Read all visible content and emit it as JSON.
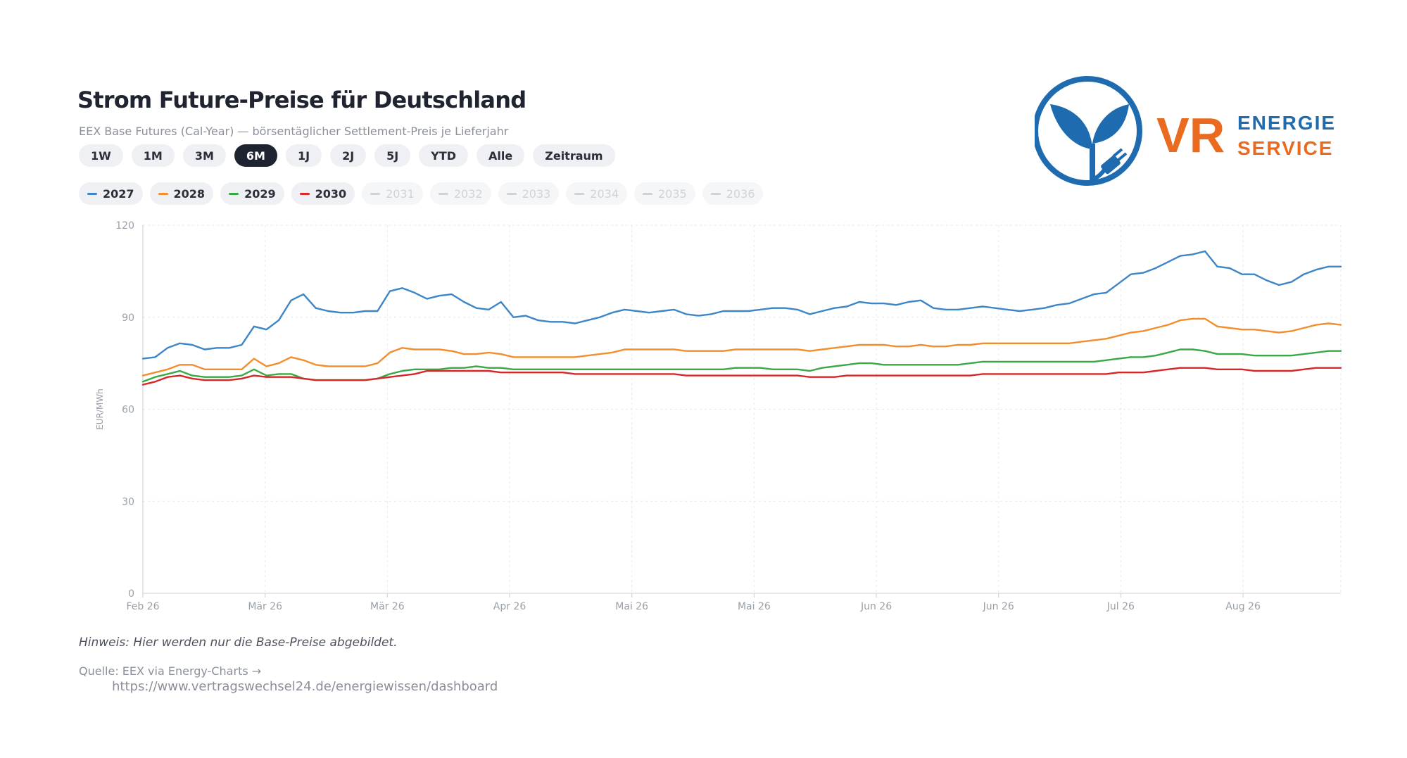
{
  "header": {
    "title": "Strom Future-Preise für Deutschland",
    "subtitle": "EEX Base Futures (Cal-Year) — börsentäglicher Settlement-Preis je Lieferjahr"
  },
  "ranges": [
    {
      "label": "1W",
      "active": false
    },
    {
      "label": "1M",
      "active": false
    },
    {
      "label": "3M",
      "active": false
    },
    {
      "label": "6M",
      "active": true
    },
    {
      "label": "1J",
      "active": false
    },
    {
      "label": "2J",
      "active": false
    },
    {
      "label": "5J",
      "active": false
    },
    {
      "label": "YTD",
      "active": false
    },
    {
      "label": "Alle",
      "active": false
    },
    {
      "label": "Zeitraum",
      "active": false
    }
  ],
  "series_toggles": [
    {
      "label": "2027",
      "color": "#3d85c6",
      "active": true
    },
    {
      "label": "2028",
      "color": "#f28e2b",
      "active": true
    },
    {
      "label": "2029",
      "color": "#3aa845",
      "active": true
    },
    {
      "label": "2030",
      "color": "#d62728",
      "active": true
    },
    {
      "label": "2031",
      "color": "#cfd3d8",
      "active": false
    },
    {
      "label": "2032",
      "color": "#cfd3d8",
      "active": false
    },
    {
      "label": "2033",
      "color": "#cfd3d8",
      "active": false
    },
    {
      "label": "2034",
      "color": "#cfd3d8",
      "active": false
    },
    {
      "label": "2035",
      "color": "#cfd3d8",
      "active": false
    },
    {
      "label": "2036",
      "color": "#cfd3d8",
      "active": false
    }
  ],
  "chart_data": {
    "type": "line",
    "ylabel": "EUR/MWh",
    "ylim": [
      0,
      120
    ],
    "yticks": [
      "0",
      "30",
      "60",
      "90",
      "120"
    ],
    "xticks": [
      "Feb 26",
      "Mär 26",
      "Mär 26",
      "Apr 26",
      "Mai 26",
      "Mai 26",
      "Jun 26",
      "Jun 26",
      "Jul 26",
      "Aug 26"
    ],
    "grid": true,
    "x": [
      0,
      2,
      4,
      6,
      8,
      10,
      12,
      14,
      16,
      18,
      20,
      22,
      24,
      26,
      28,
      30,
      32,
      34,
      36,
      38,
      40,
      42,
      44,
      46,
      48,
      50,
      52,
      54,
      56,
      58,
      60,
      62,
      64,
      66,
      68,
      70,
      72,
      74,
      76,
      78,
      80,
      82,
      84,
      86,
      88,
      90,
      92,
      94,
      96,
      98,
      100,
      102,
      104,
      106,
      108,
      110,
      112,
      114,
      116,
      118,
      120,
      122,
      124,
      126,
      128,
      130,
      132,
      134,
      136,
      138,
      140,
      142,
      144,
      146,
      148,
      150,
      152,
      154,
      156,
      158,
      160,
      162,
      164,
      166,
      168,
      170,
      172,
      174,
      176,
      178,
      180,
      182,
      184,
      186,
      188,
      190,
      192,
      194
    ],
    "series": [
      {
        "name": "2027",
        "color": "#3d85c6",
        "values": [
          76.5,
          77,
          80,
          81.5,
          81,
          79.5,
          80,
          80,
          81,
          87,
          86,
          89,
          95.5,
          97.5,
          93,
          92,
          91.5,
          91.5,
          92,
          92,
          98.5,
          99.5,
          98,
          96,
          97,
          97.5,
          95,
          93,
          92.5,
          95,
          90,
          90.5,
          89,
          88.5,
          88.5,
          88,
          89,
          90,
          91.5,
          92.5,
          92,
          91.5,
          92,
          92.5,
          91,
          90.5,
          91,
          92,
          92,
          92,
          92.5,
          93,
          93,
          92.5,
          91,
          92,
          93,
          93.5,
          95,
          94.5,
          94.5,
          94,
          95,
          95.5,
          93,
          92.5,
          92.5,
          93,
          93.5,
          93,
          92.5,
          92,
          92.5,
          93,
          94,
          94.5,
          96,
          97.5,
          98,
          101,
          104,
          104.5,
          106,
          108,
          110,
          110.5,
          111.5,
          106.5,
          106,
          104,
          104,
          102,
          100.5,
          101.5,
          104,
          105.5,
          106.5,
          106.5
        ]
      },
      {
        "name": "2028",
        "color": "#f28e2b",
        "values": [
          71,
          72,
          73,
          74.5,
          74.5,
          73,
          73,
          73,
          73,
          76.5,
          74,
          75,
          77,
          76,
          74.5,
          74,
          74,
          74,
          74,
          75,
          78.5,
          80,
          79.5,
          79.5,
          79.5,
          79,
          78,
          78,
          78.5,
          78,
          77,
          77,
          77,
          77,
          77,
          77,
          77.5,
          78,
          78.5,
          79.5,
          79.5,
          79.5,
          79.5,
          79.5,
          79,
          79,
          79,
          79,
          79.5,
          79.5,
          79.5,
          79.5,
          79.5,
          79.5,
          79,
          79.5,
          80,
          80.5,
          81,
          81,
          81,
          80.5,
          80.5,
          81,
          80.5,
          80.5,
          81,
          81,
          81.5,
          81.5,
          81.5,
          81.5,
          81.5,
          81.5,
          81.5,
          81.5,
          82,
          82.5,
          83,
          84,
          85,
          85.5,
          86.5,
          87.5,
          89,
          89.5,
          89.5,
          87,
          86.5,
          86,
          86,
          85.5,
          85,
          85.5,
          86.5,
          87.5,
          88,
          87.5
        ]
      },
      {
        "name": "2029",
        "color": "#3aa845",
        "values": [
          69,
          70.5,
          71.5,
          72.5,
          71,
          70.5,
          70.5,
          70.5,
          71,
          73,
          71,
          71.5,
          71.5,
          70,
          69.5,
          69.5,
          69.5,
          69.5,
          69.5,
          70,
          71.5,
          72.5,
          73,
          73,
          73,
          73.5,
          73.5,
          74,
          73.5,
          73.5,
          73,
          73,
          73,
          73,
          73,
          73,
          73,
          73,
          73,
          73,
          73,
          73,
          73,
          73,
          73,
          73,
          73,
          73,
          73.5,
          73.5,
          73.5,
          73,
          73,
          73,
          72.5,
          73.5,
          74,
          74.5,
          75,
          75,
          74.5,
          74.5,
          74.5,
          74.5,
          74.5,
          74.5,
          74.5,
          75,
          75.5,
          75.5,
          75.5,
          75.5,
          75.5,
          75.5,
          75.5,
          75.5,
          75.5,
          75.5,
          76,
          76.5,
          77,
          77,
          77.5,
          78.5,
          79.5,
          79.5,
          79,
          78,
          78,
          78,
          77.5,
          77.5,
          77.5,
          77.5,
          78,
          78.5,
          79,
          79
        ]
      },
      {
        "name": "2030",
        "color": "#d62728",
        "values": [
          68,
          69,
          70.5,
          71,
          70,
          69.5,
          69.5,
          69.5,
          70,
          71,
          70.5,
          70.5,
          70.5,
          70,
          69.5,
          69.5,
          69.5,
          69.5,
          69.5,
          70,
          70.5,
          71,
          71.5,
          72.5,
          72.5,
          72.5,
          72.5,
          72.5,
          72.5,
          72,
          72,
          72,
          72,
          72,
          72,
          71.5,
          71.5,
          71.5,
          71.5,
          71.5,
          71.5,
          71.5,
          71.5,
          71.5,
          71,
          71,
          71,
          71,
          71,
          71,
          71,
          71,
          71,
          71,
          70.5,
          70.5,
          70.5,
          71,
          71,
          71,
          71,
          71,
          71,
          71,
          71,
          71,
          71,
          71,
          71.5,
          71.5,
          71.5,
          71.5,
          71.5,
          71.5,
          71.5,
          71.5,
          71.5,
          71.5,
          71.5,
          72,
          72,
          72,
          72.5,
          73,
          73.5,
          73.5,
          73.5,
          73,
          73,
          73,
          72.5,
          72.5,
          72.5,
          72.5,
          73,
          73.5,
          73.5,
          73.5
        ]
      }
    ]
  },
  "footer": {
    "note": "Hinweis: Hier werden nur die Base-Preise abgebildet.",
    "source": "Quelle: EEX via Energy-Charts →",
    "source_url": "https://www.vertragswechsel24.de/energiewissen/dashboard"
  },
  "logo": {
    "text_vr": "VR",
    "text_line1": "ENERGIE",
    "text_line2": "SERVICE",
    "icon_name": "plant-plug-icon",
    "color_blue": "#1f6bb0",
    "color_orange": "#ea6a1f"
  }
}
